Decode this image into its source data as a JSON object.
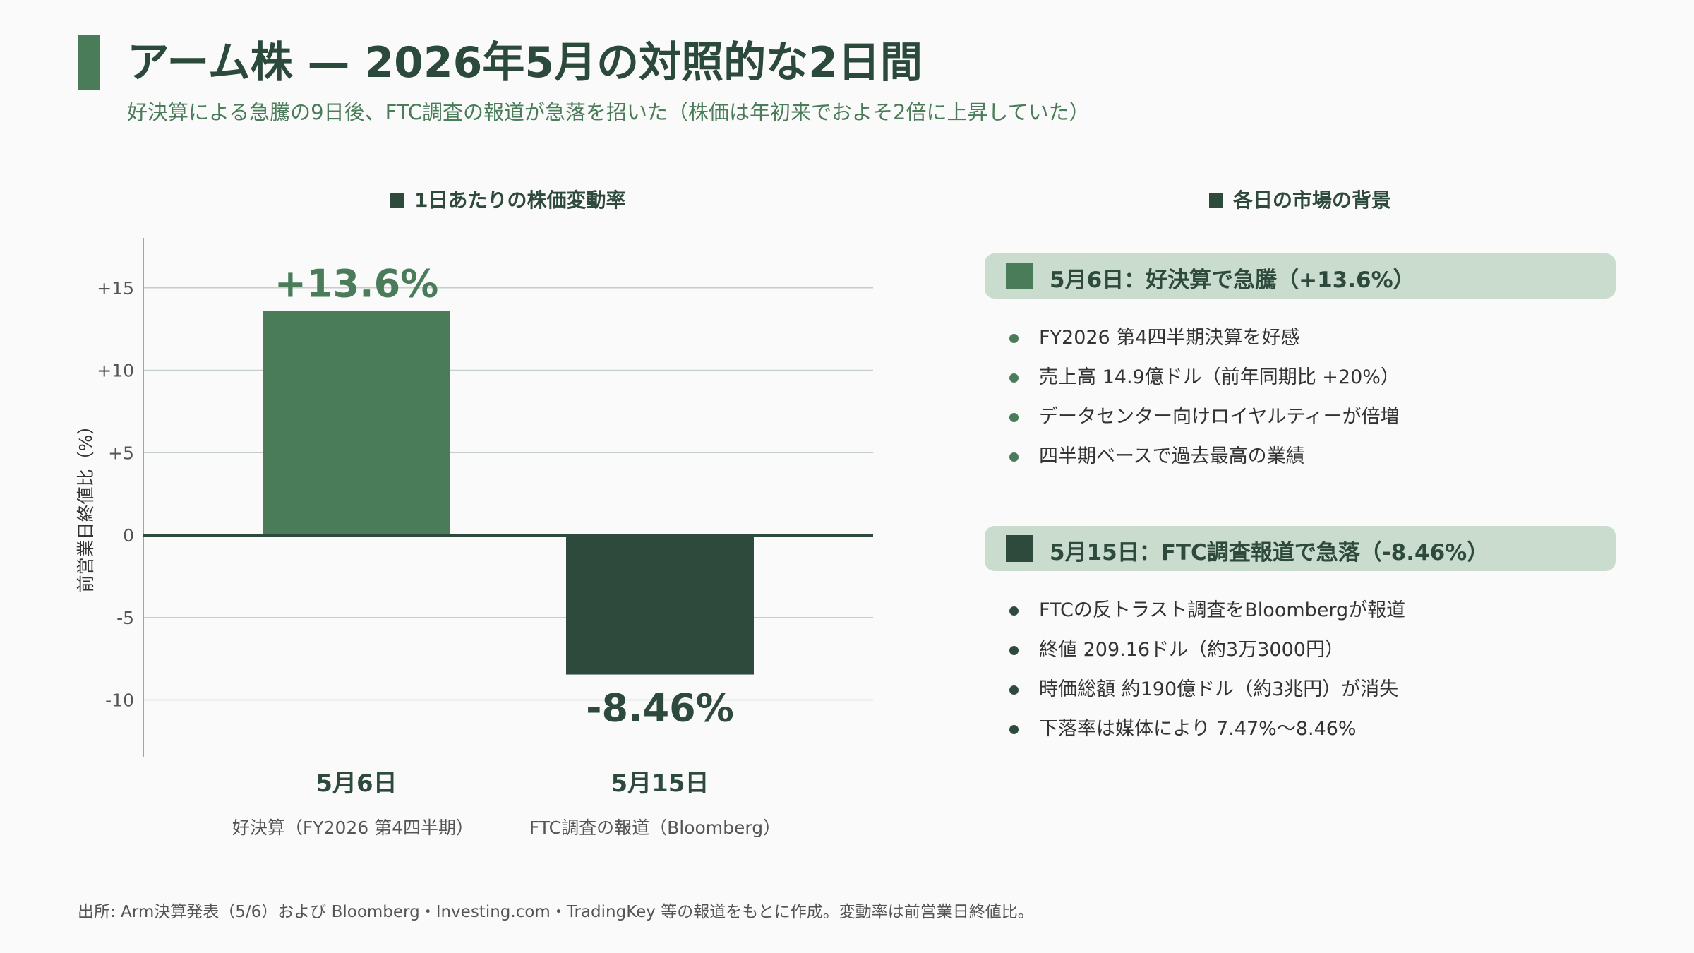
{
  "header": {
    "title": "アーム株 — 2026年5月の対照的な2日間",
    "subtitle": "好決算による急騰の9日後、FTC調査の報道が急落を招いた（株価は年初来でおよそ2倍に上昇していた）"
  },
  "chart_section": {
    "heading": "1日あたりの株価変動率"
  },
  "chart_data": {
    "type": "bar",
    "categories": [
      "5月6日",
      "5月15日"
    ],
    "category_sub": [
      "好決算（FY2026 第4四半期）",
      "FTC調査の報道（Bloomberg）"
    ],
    "values": [
      13.6,
      -8.46
    ],
    "data_labels": [
      "+13.6%",
      "-8.46%"
    ],
    "ylabel": "前営業日終値比（%）",
    "ylim": [
      -13.5,
      18
    ],
    "yticks": [
      15,
      10,
      5,
      0,
      -5,
      -10
    ],
    "ytick_labels": [
      "+15",
      "+10",
      "+5",
      "0",
      "-5",
      "-10"
    ],
    "grid": true,
    "colors": [
      "#4a7c59",
      "#2e4a3d"
    ]
  },
  "context_section": {
    "heading": "各日の市場の背景",
    "panels": [
      {
        "title": "5月6日：好決算で急騰（+13.6%）",
        "color": "#4a7c59",
        "bullets": [
          "FY2026 第4四半期決算を好感",
          "売上高 14.9億ドル（前年同期比 +20%）",
          "データセンター向けロイヤルティーが倍増",
          "四半期ベースで過去最高の業績"
        ]
      },
      {
        "title": "5月15日：FTC調査報道で急落（-8.46%）",
        "color": "#2e4a3d",
        "bullets": [
          "FTCの反トラスト調査をBloombergが報道",
          "終値 209.16ドル（約3万3000円）",
          "時価総額 約190億ドル（約3兆円）が消失",
          "下落率は媒体により 7.47%〜8.46%"
        ]
      }
    ]
  },
  "footnote": "出所: Arm決算発表（5/6）および Bloomberg・Investing.com・TradingKey 等の報道をもとに作成。変動率は前営業日終値比。"
}
